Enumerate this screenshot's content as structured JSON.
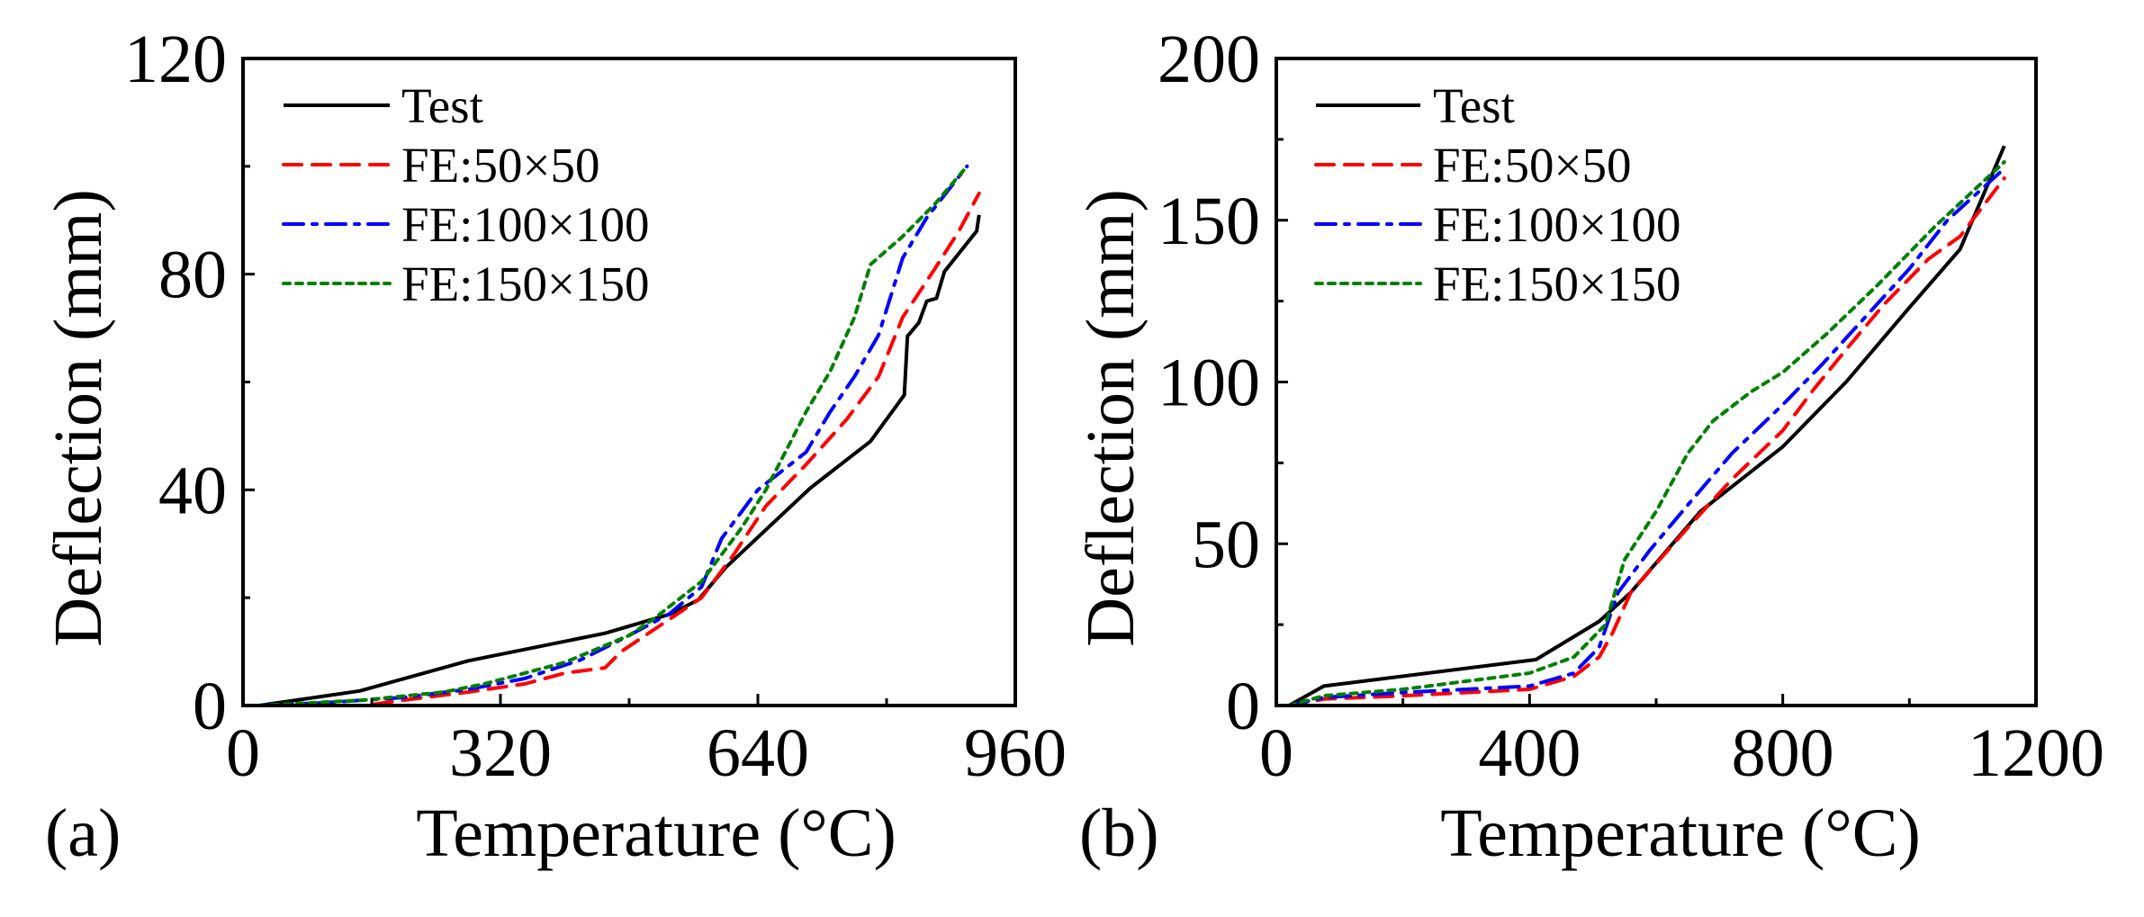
{
  "chart_data": [
    {
      "type": "line",
      "panel_label": "(a)",
      "xlabel": "Temperature (°C)",
      "ylabel": "Deflection (mm)",
      "xlim": [
        0,
        960
      ],
      "ylim": [
        0,
        120
      ],
      "xticks": [
        0,
        320,
        640,
        960
      ],
      "yticks": [
        0,
        40,
        80,
        120
      ],
      "xminor": 160,
      "yminor": 20,
      "legend_position": "top-left",
      "series": [
        {
          "name": "Test",
          "color": "#000000",
          "style": "solid",
          "x": [
            20,
            145,
            280,
            450,
            530,
            566,
            600,
            705,
            780,
            822,
            826,
            840,
            850,
            862,
            872,
            912,
            915
          ],
          "y": [
            0,
            2.7,
            8.3,
            13.4,
            16.9,
            19.6,
            25.6,
            40.3,
            49,
            57.6,
            68.5,
            71,
            75,
            75.5,
            80.5,
            88,
            91
          ]
        },
        {
          "name": "FE:50×50",
          "color": "#ff0000",
          "style": "dashed",
          "x": [
            20,
            150,
            200,
            280,
            350,
            400,
            450,
            470,
            520,
            570,
            610,
            650,
            700,
            750,
            790,
            820,
            860,
            890,
            915
          ],
          "y": [
            0,
            0,
            1,
            2.5,
            4,
            6,
            7,
            10,
            15,
            20,
            28,
            37,
            44.7,
            53,
            61,
            72,
            81,
            88,
            95
          ]
        },
        {
          "name": "FE:100×100",
          "color": "#0000ff",
          "style": "dashdot",
          "x": [
            20,
            100,
            200,
            280,
            350,
            420,
            480,
            530,
            570,
            595,
            640,
            700,
            730,
            760,
            790,
            820,
            850,
            900
          ],
          "y": [
            0,
            0.5,
            1.5,
            3,
            5,
            8.5,
            13,
            17,
            22,
            31,
            40,
            47,
            54.5,
            61,
            68.7,
            83,
            90.5,
            100
          ]
        },
        {
          "name": "FE:150×150",
          "color": "#008000",
          "style": "dotted",
          "x": [
            20,
            150,
            250,
            300,
            400,
            480,
            510,
            570,
            620,
            650,
            700,
            730,
            760,
            780,
            820,
            860,
            900
          ],
          "y": [
            0,
            1,
            2.5,
            4,
            8,
            13,
            16,
            23,
            33,
            40,
            54.5,
            62,
            72,
            81.8,
            87,
            93,
            100
          ]
        }
      ]
    },
    {
      "type": "line",
      "panel_label": "(b)",
      "xlabel": "Temperature (°C)",
      "ylabel": "Deflection (mm)",
      "xlim": [
        0,
        1200
      ],
      "ylim": [
        0,
        200
      ],
      "xticks": [
        0,
        400,
        800,
        1200
      ],
      "yticks": [
        0,
        50,
        100,
        150,
        200
      ],
      "xminor": 200,
      "yminor": 25,
      "legend_position": "top-left",
      "series": [
        {
          "name": "Test",
          "color": "#000000",
          "style": "solid",
          "x": [
            20,
            75,
            410,
            510,
            560,
            670,
            800,
            900,
            1000,
            1080,
            1150
          ],
          "y": [
            0,
            6,
            14.2,
            26,
            35,
            60,
            80,
            100,
            123,
            141,
            173
          ]
        },
        {
          "name": "FE:50×50",
          "color": "#ff0000",
          "style": "dashed",
          "x": [
            20,
            75,
            200,
            400,
            470,
            510,
            530,
            560,
            650,
            720,
            800,
            850,
            900,
            960,
            1030,
            1080,
            1150
          ],
          "y": [
            0,
            2,
            3,
            5,
            9,
            15,
            22,
            35,
            55,
            70,
            85,
            98,
            110,
            124,
            138,
            145,
            163
          ]
        },
        {
          "name": "FE:100×100",
          "color": "#0000ff",
          "style": "dashdot",
          "x": [
            20,
            75,
            200,
            400,
            470,
            510,
            540,
            590,
            650,
            720,
            800,
            860,
            930,
            1000,
            1060,
            1150
          ],
          "y": [
            0,
            2.5,
            4,
            6,
            10,
            18,
            35,
            48,
            62,
            78,
            93,
            105,
            120,
            135,
            150,
            166
          ]
        },
        {
          "name": "FE:150×150",
          "color": "#008000",
          "style": "dotted",
          "x": [
            20,
            75,
            200,
            400,
            470,
            520,
            550,
            600,
            650,
            690,
            750,
            800,
            870,
            950,
            1040,
            1150
          ],
          "y": [
            0,
            3,
            5,
            10,
            15,
            25,
            45,
            60,
            78,
            88,
            97,
            103,
            115,
            130,
            148,
            168
          ]
        }
      ]
    }
  ]
}
